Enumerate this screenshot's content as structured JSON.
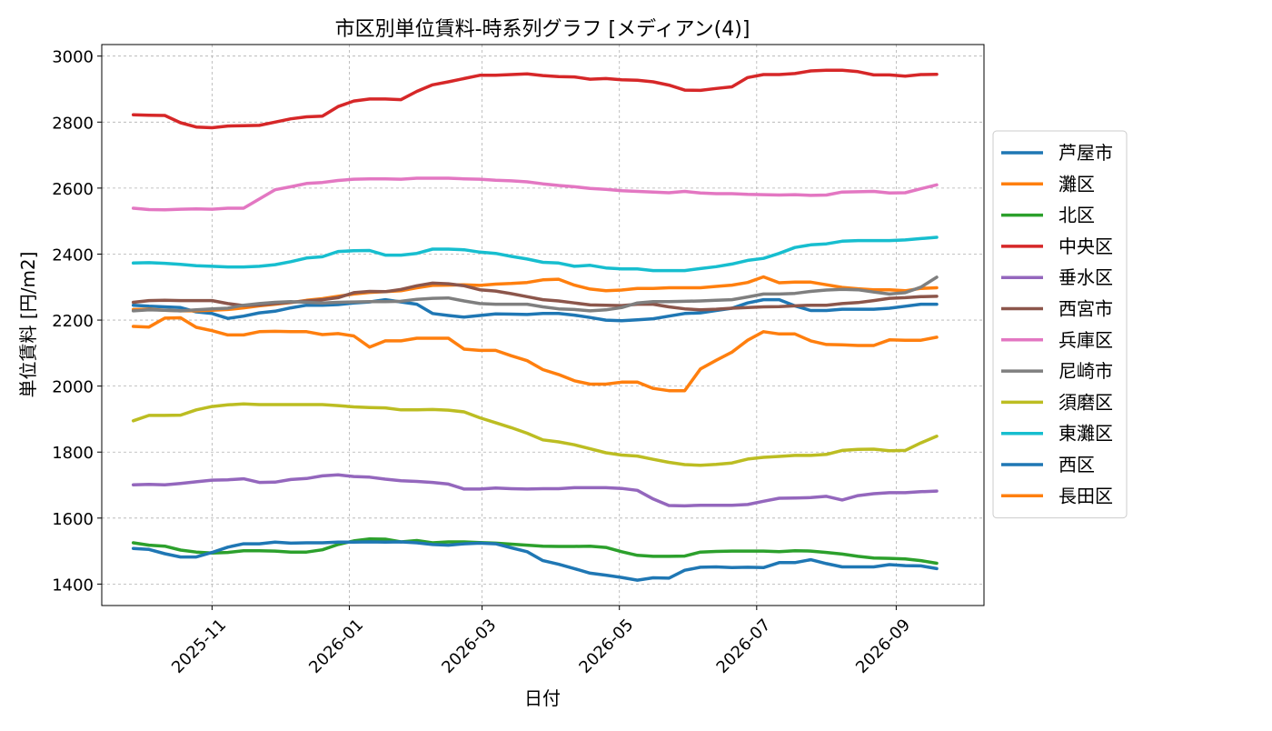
{
  "chart_data": {
    "type": "line",
    "title": "市区別単位賃料-時系列グラフ [メディアン(4)]",
    "xlabel": "日付",
    "ylabel": "単位賃料 [円/m2]",
    "grid": true,
    "legend_position": "outside-right",
    "x_tick_labels": [
      "2025-11",
      "2026-01",
      "2026-03",
      "2026-05",
      "2026-07",
      "2026-09"
    ],
    "x_tick_dates": [
      "2025-11-01",
      "2026-01-01",
      "2026-03-01",
      "2026-05-01",
      "2026-07-01",
      "2026-09-01"
    ],
    "y_ticks": [
      1400,
      1600,
      1800,
      2000,
      2200,
      2400,
      2600,
      2800,
      3000
    ],
    "xlim": [
      "2025-09-13",
      "2026-10-10"
    ],
    "ylim": [
      1335,
      3035
    ],
    "x": [
      "2025-09-27",
      "2025-10-04",
      "2025-10-11",
      "2025-10-18",
      "2025-10-25",
      "2025-11-01",
      "2025-11-08",
      "2025-11-15",
      "2025-11-22",
      "2025-11-29",
      "2025-12-06",
      "2025-12-13",
      "2025-12-20",
      "2025-12-27",
      "2026-01-03",
      "2026-01-10",
      "2026-01-17",
      "2026-01-24",
      "2026-01-31",
      "2026-02-07",
      "2026-02-14",
      "2026-02-21",
      "2026-02-28",
      "2026-03-07",
      "2026-03-14",
      "2026-03-21",
      "2026-03-28",
      "2026-04-04",
      "2026-04-11",
      "2026-04-18",
      "2026-04-25",
      "2026-05-02",
      "2026-05-09",
      "2026-05-16",
      "2026-05-23",
      "2026-05-30",
      "2026-06-06",
      "2026-06-13",
      "2026-06-20",
      "2026-06-27",
      "2026-07-04",
      "2026-07-11",
      "2026-07-18",
      "2026-07-25",
      "2026-08-01",
      "2026-08-08",
      "2026-08-15",
      "2026-08-22",
      "2026-08-29",
      "2026-09-05",
      "2026-09-12",
      "2026-09-19"
    ],
    "series": [
      {
        "name": "芦屋市",
        "color": "#1f77b4",
        "values": [
          2245,
          2242,
          2240,
          2238,
          2225,
          2220,
          2205,
          2212,
          2222,
          2227,
          2237,
          2245,
          2245,
          2247,
          2252,
          2255,
          2262,
          2255,
          2248,
          2220,
          2214,
          2209,
          2214,
          2219,
          2218,
          2217,
          2220,
          2220,
          2215,
          2208,
          2200,
          2198,
          2201,
          2204,
          2212,
          2220,
          2222,
          2229,
          2236,
          2252,
          2262,
          2262,
          2243,
          2229,
          2229,
          2233,
          2233,
          2233,
          2236,
          2242,
          2248,
          2248
        ]
      },
      {
        "name": "灘区",
        "color": "#ff7f0e",
        "values": [
          2232,
          2233,
          2230,
          2228,
          2228,
          2230,
          2232,
          2237,
          2243,
          2248,
          2253,
          2260,
          2265,
          2272,
          2279,
          2284,
          2286,
          2289,
          2298,
          2305,
          2306,
          2307,
          2305,
          2309,
          2311,
          2314,
          2322,
          2324,
          2306,
          2294,
          2289,
          2291,
          2296,
          2296,
          2298,
          2298,
          2298,
          2302,
          2306,
          2314,
          2331,
          2313,
          2315,
          2315,
          2307,
          2299,
          2295,
          2292,
          2292,
          2289,
          2296,
          2298
        ]
      },
      {
        "name": "北区",
        "color": "#2ca02c",
        "values": [
          1525,
          1518,
          1515,
          1503,
          1497,
          1494,
          1496,
          1501,
          1501,
          1500,
          1497,
          1497,
          1504,
          1520,
          1531,
          1537,
          1536,
          1528,
          1532,
          1525,
          1528,
          1528,
          1526,
          1524,
          1521,
          1518,
          1515,
          1514,
          1514,
          1515,
          1511,
          1498,
          1487,
          1484,
          1484,
          1485,
          1497,
          1499,
          1500,
          1500,
          1500,
          1498,
          1501,
          1500,
          1496,
          1491,
          1484,
          1479,
          1478,
          1476,
          1471,
          1463
        ]
      },
      {
        "name": "中央区",
        "color": "#d62728",
        "values": [
          2822,
          2821,
          2820,
          2798,
          2785,
          2783,
          2788,
          2789,
          2790,
          2800,
          2810,
          2816,
          2818,
          2847,
          2864,
          2870,
          2870,
          2868,
          2893,
          2913,
          2922,
          2932,
          2942,
          2942,
          2944,
          2946,
          2941,
          2938,
          2937,
          2930,
          2932,
          2928,
          2927,
          2922,
          2912,
          2897,
          2896,
          2902,
          2907,
          2935,
          2944,
          2944,
          2947,
          2955,
          2957,
          2957,
          2953,
          2943,
          2943,
          2939,
          2944,
          2945
        ]
      },
      {
        "name": "垂水区",
        "color": "#9467bd",
        "values": [
          1701,
          1702,
          1701,
          1705,
          1710,
          1715,
          1716,
          1719,
          1708,
          1709,
          1717,
          1720,
          1728,
          1731,
          1726,
          1724,
          1718,
          1713,
          1711,
          1708,
          1703,
          1688,
          1688,
          1691,
          1689,
          1688,
          1689,
          1689,
          1692,
          1692,
          1692,
          1690,
          1684,
          1658,
          1638,
          1637,
          1639,
          1639,
          1639,
          1641,
          1651,
          1660,
          1661,
          1662,
          1666,
          1655,
          1668,
          1674,
          1677,
          1677,
          1680,
          1682
        ]
      },
      {
        "name": "西宮市",
        "color": "#8c564b",
        "values": [
          2254,
          2259,
          2260,
          2259,
          2259,
          2259,
          2250,
          2244,
          2246,
          2250,
          2254,
          2258,
          2262,
          2268,
          2283,
          2287,
          2286,
          2293,
          2304,
          2312,
          2310,
          2304,
          2292,
          2288,
          2280,
          2271,
          2262,
          2258,
          2252,
          2246,
          2245,
          2244,
          2248,
          2248,
          2240,
          2234,
          2231,
          2233,
          2236,
          2238,
          2240,
          2241,
          2243,
          2245,
          2245,
          2250,
          2253,
          2259,
          2266,
          2268,
          2271,
          2272
        ]
      },
      {
        "name": "兵庫区",
        "color": "#e377c2",
        "values": [
          2539,
          2535,
          2534,
          2536,
          2537,
          2536,
          2539,
          2539,
          2567,
          2595,
          2604,
          2614,
          2617,
          2623,
          2627,
          2628,
          2628,
          2627,
          2630,
          2630,
          2630,
          2628,
          2627,
          2624,
          2622,
          2619,
          2613,
          2608,
          2604,
          2599,
          2596,
          2592,
          2590,
          2588,
          2586,
          2590,
          2585,
          2583,
          2583,
          2581,
          2580,
          2579,
          2580,
          2578,
          2579,
          2588,
          2589,
          2590,
          2585,
          2586,
          2598,
          2610
        ]
      },
      {
        "name": "尼崎市",
        "color": "#7f7f7f",
        "values": [
          2228,
          2231,
          2230,
          2228,
          2231,
          2234,
          2236,
          2245,
          2250,
          2254,
          2256,
          2254,
          2252,
          2254,
          2255,
          2256,
          2256,
          2257,
          2263,
          2266,
          2267,
          2258,
          2250,
          2248,
          2248,
          2248,
          2240,
          2234,
          2232,
          2228,
          2231,
          2238,
          2252,
          2256,
          2256,
          2257,
          2258,
          2260,
          2262,
          2270,
          2279,
          2279,
          2281,
          2287,
          2291,
          2293,
          2292,
          2285,
          2279,
          2283,
          2300,
          2330
        ]
      },
      {
        "name": "須磨区",
        "color": "#bcbd22",
        "values": [
          1895,
          1911,
          1911,
          1912,
          1928,
          1938,
          1943,
          1946,
          1944,
          1944,
          1944,
          1944,
          1944,
          1941,
          1937,
          1935,
          1934,
          1928,
          1928,
          1929,
          1927,
          1922,
          1904,
          1889,
          1874,
          1857,
          1837,
          1831,
          1822,
          1810,
          1798,
          1791,
          1788,
          1778,
          1769,
          1762,
          1760,
          1763,
          1767,
          1779,
          1784,
          1787,
          1790,
          1790,
          1793,
          1805,
          1808,
          1809,
          1804,
          1805,
          1828,
          1848
        ]
      },
      {
        "name": "東灘区",
        "color": "#17becf",
        "values": [
          2373,
          2374,
          2372,
          2369,
          2365,
          2363,
          2361,
          2361,
          2363,
          2368,
          2377,
          2388,
          2392,
          2408,
          2410,
          2411,
          2397,
          2397,
          2402,
          2415,
          2415,
          2413,
          2406,
          2402,
          2393,
          2385,
          2375,
          2373,
          2363,
          2366,
          2358,
          2355,
          2355,
          2350,
          2350,
          2350,
          2356,
          2362,
          2370,
          2381,
          2387,
          2402,
          2420,
          2428,
          2431,
          2439,
          2441,
          2441,
          2441,
          2443,
          2447,
          2451
        ]
      },
      {
        "name": "西区",
        "color": "#1f77b4",
        "values": [
          1508,
          1505,
          1492,
          1482,
          1482,
          1496,
          1512,
          1522,
          1522,
          1527,
          1524,
          1525,
          1525,
          1527,
          1527,
          1528,
          1527,
          1528,
          1525,
          1520,
          1518,
          1522,
          1524,
          1522,
          1510,
          1498,
          1471,
          1460,
          1447,
          1433,
          1427,
          1420,
          1412,
          1419,
          1418,
          1442,
          1451,
          1452,
          1450,
          1451,
          1450,
          1465,
          1465,
          1474,
          1462,
          1452,
          1452,
          1452,
          1459,
          1456,
          1455,
          1447
        ]
      },
      {
        "name": "長田区",
        "color": "#ff7f0e",
        "values": [
          2181,
          2179,
          2206,
          2207,
          2178,
          2168,
          2155,
          2155,
          2165,
          2166,
          2165,
          2165,
          2156,
          2159,
          2152,
          2118,
          2137,
          2137,
          2145,
          2145,
          2145,
          2112,
          2108,
          2108,
          2092,
          2077,
          2050,
          2035,
          2016,
          2006,
          2006,
          2012,
          2012,
          1993,
          1986,
          1986,
          2052,
          2078,
          2103,
          2139,
          2165,
          2158,
          2158,
          2137,
          2126,
          2125,
          2123,
          2123,
          2140,
          2139,
          2139,
          2148
        ]
      }
    ]
  }
}
